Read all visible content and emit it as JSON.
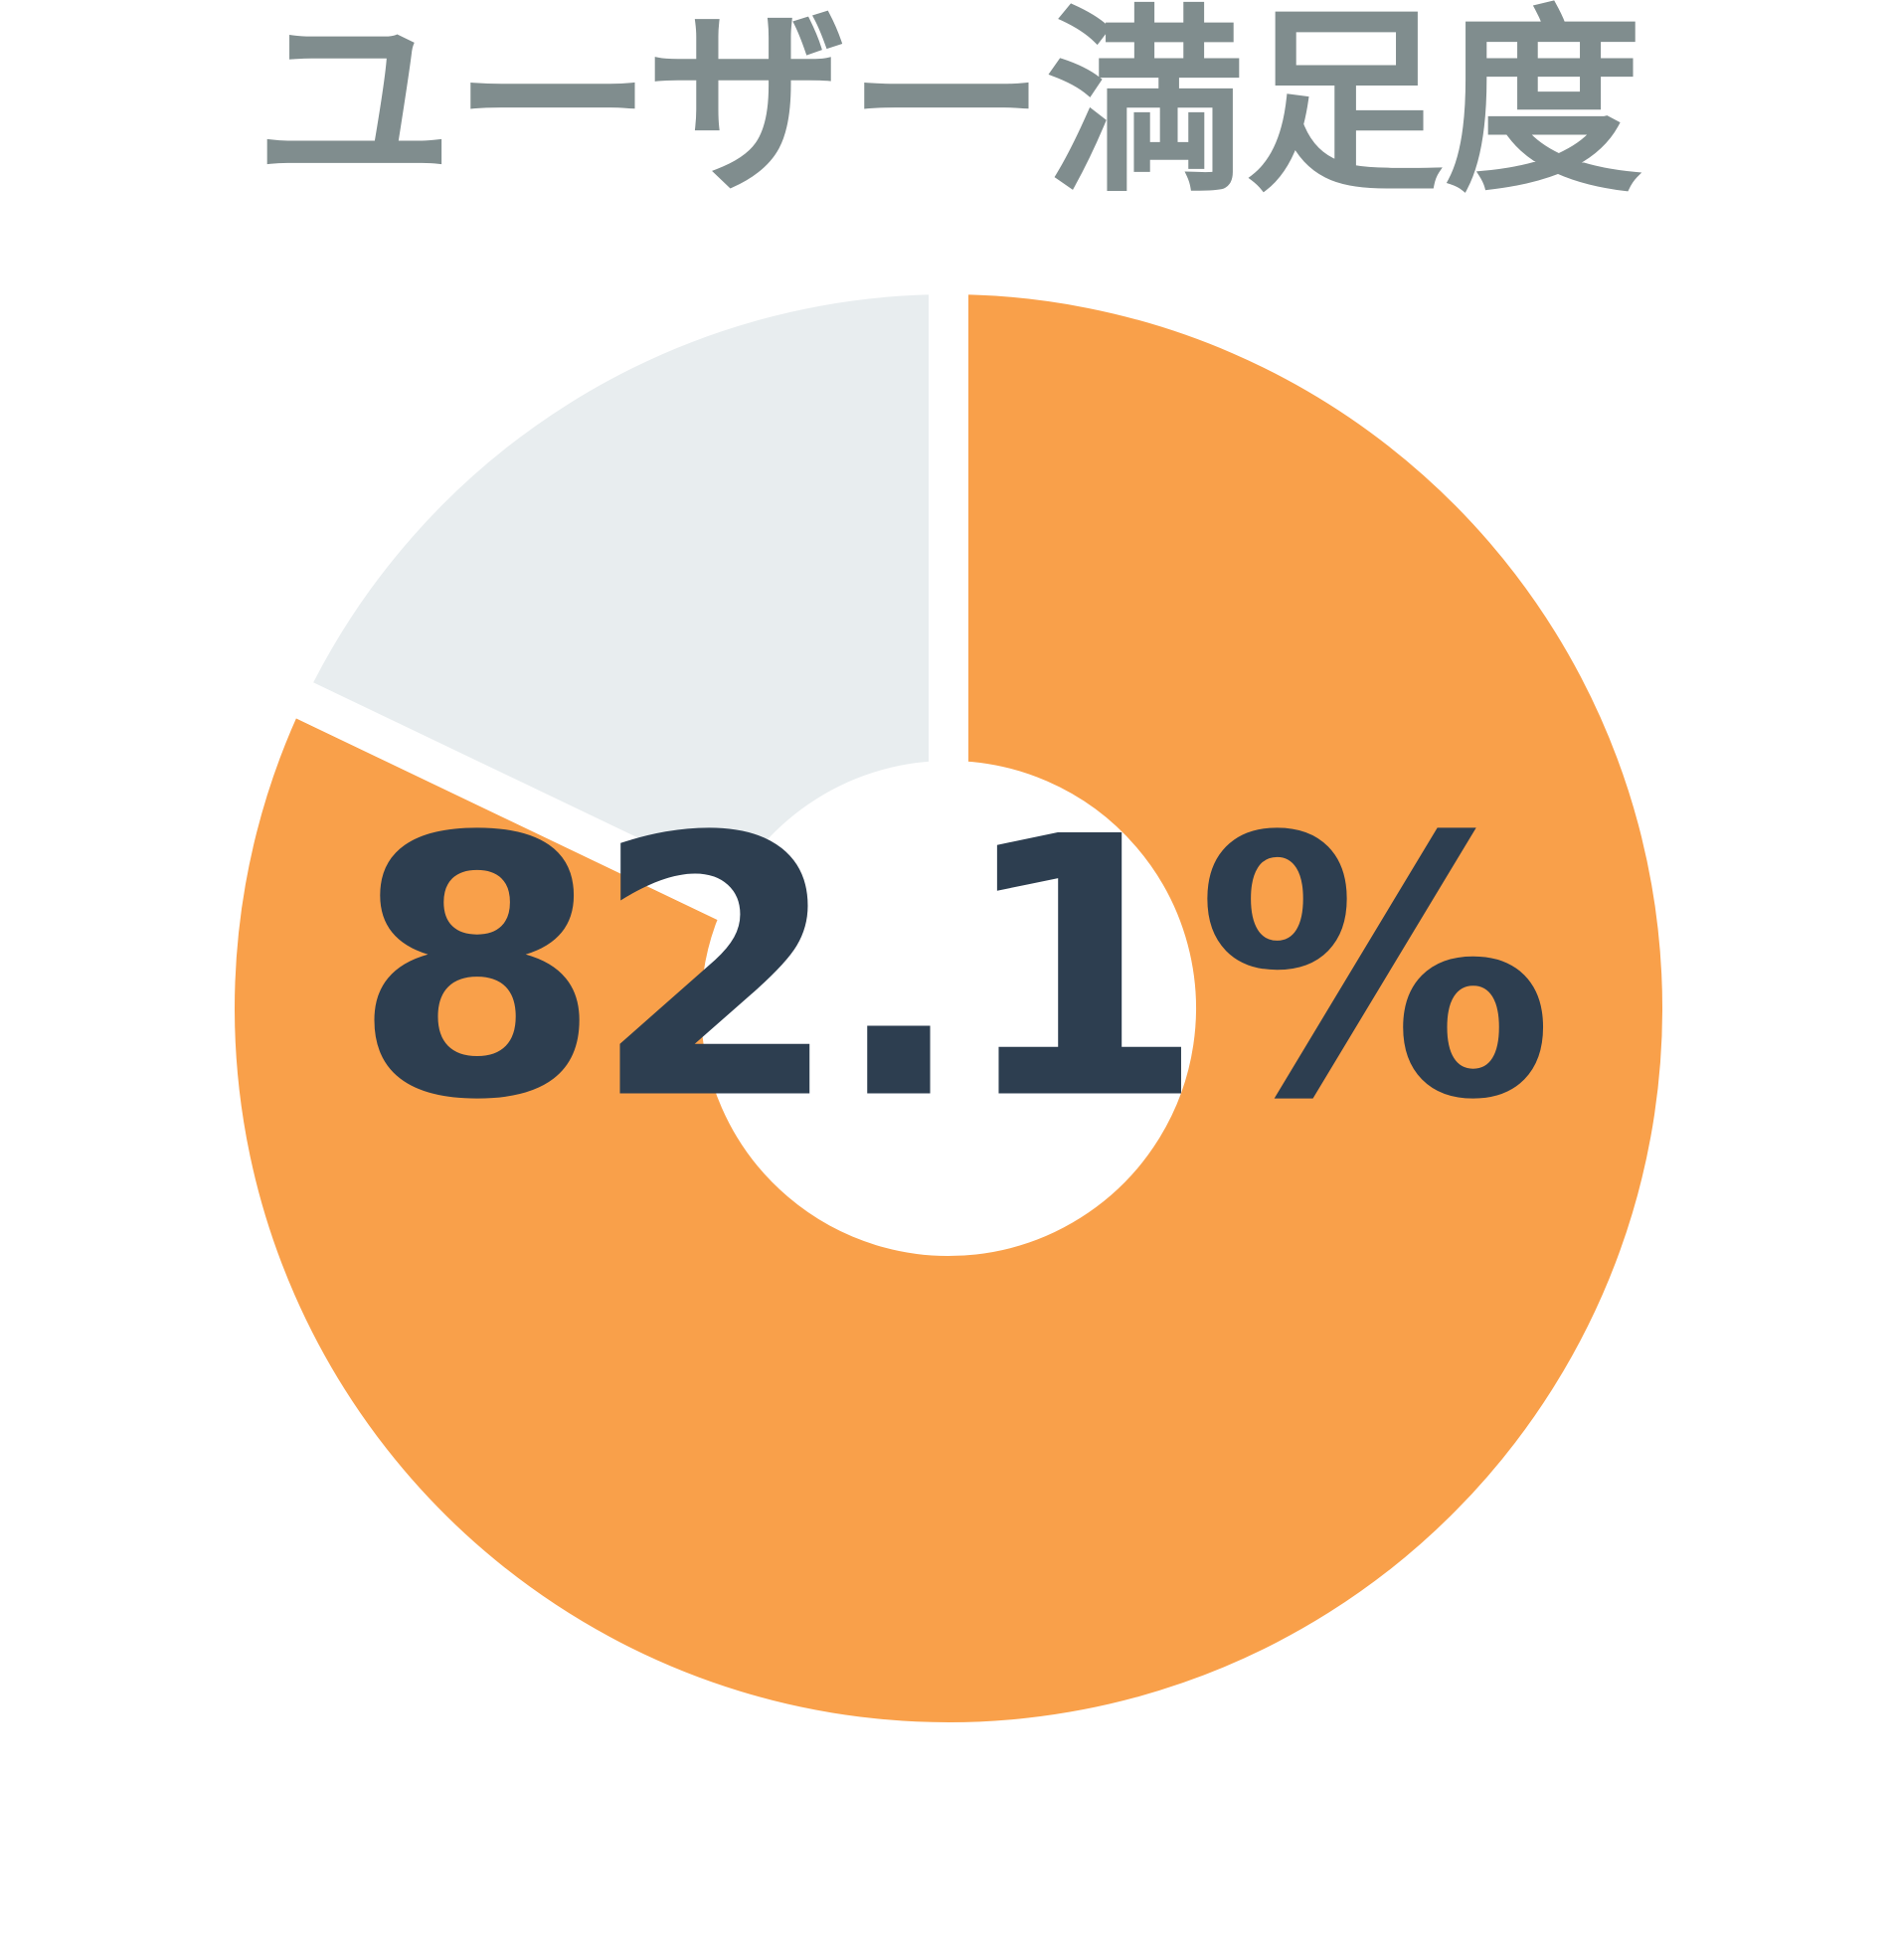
{
  "chart_data": {
    "type": "pie",
    "title": "ユーザー満足度",
    "center_label": "82.1%",
    "values": [
      82.1,
      17.9
    ],
    "colors": [
      "#f9a04a",
      "#e8edef"
    ],
    "start_angle_deg": 0,
    "direction": "clockwise",
    "donut_hole_ratio": 0.31,
    "slice_gap_color": "#ffffff",
    "legend": "none",
    "title_color": "#808d8e",
    "label_color": "#2d3e50"
  }
}
